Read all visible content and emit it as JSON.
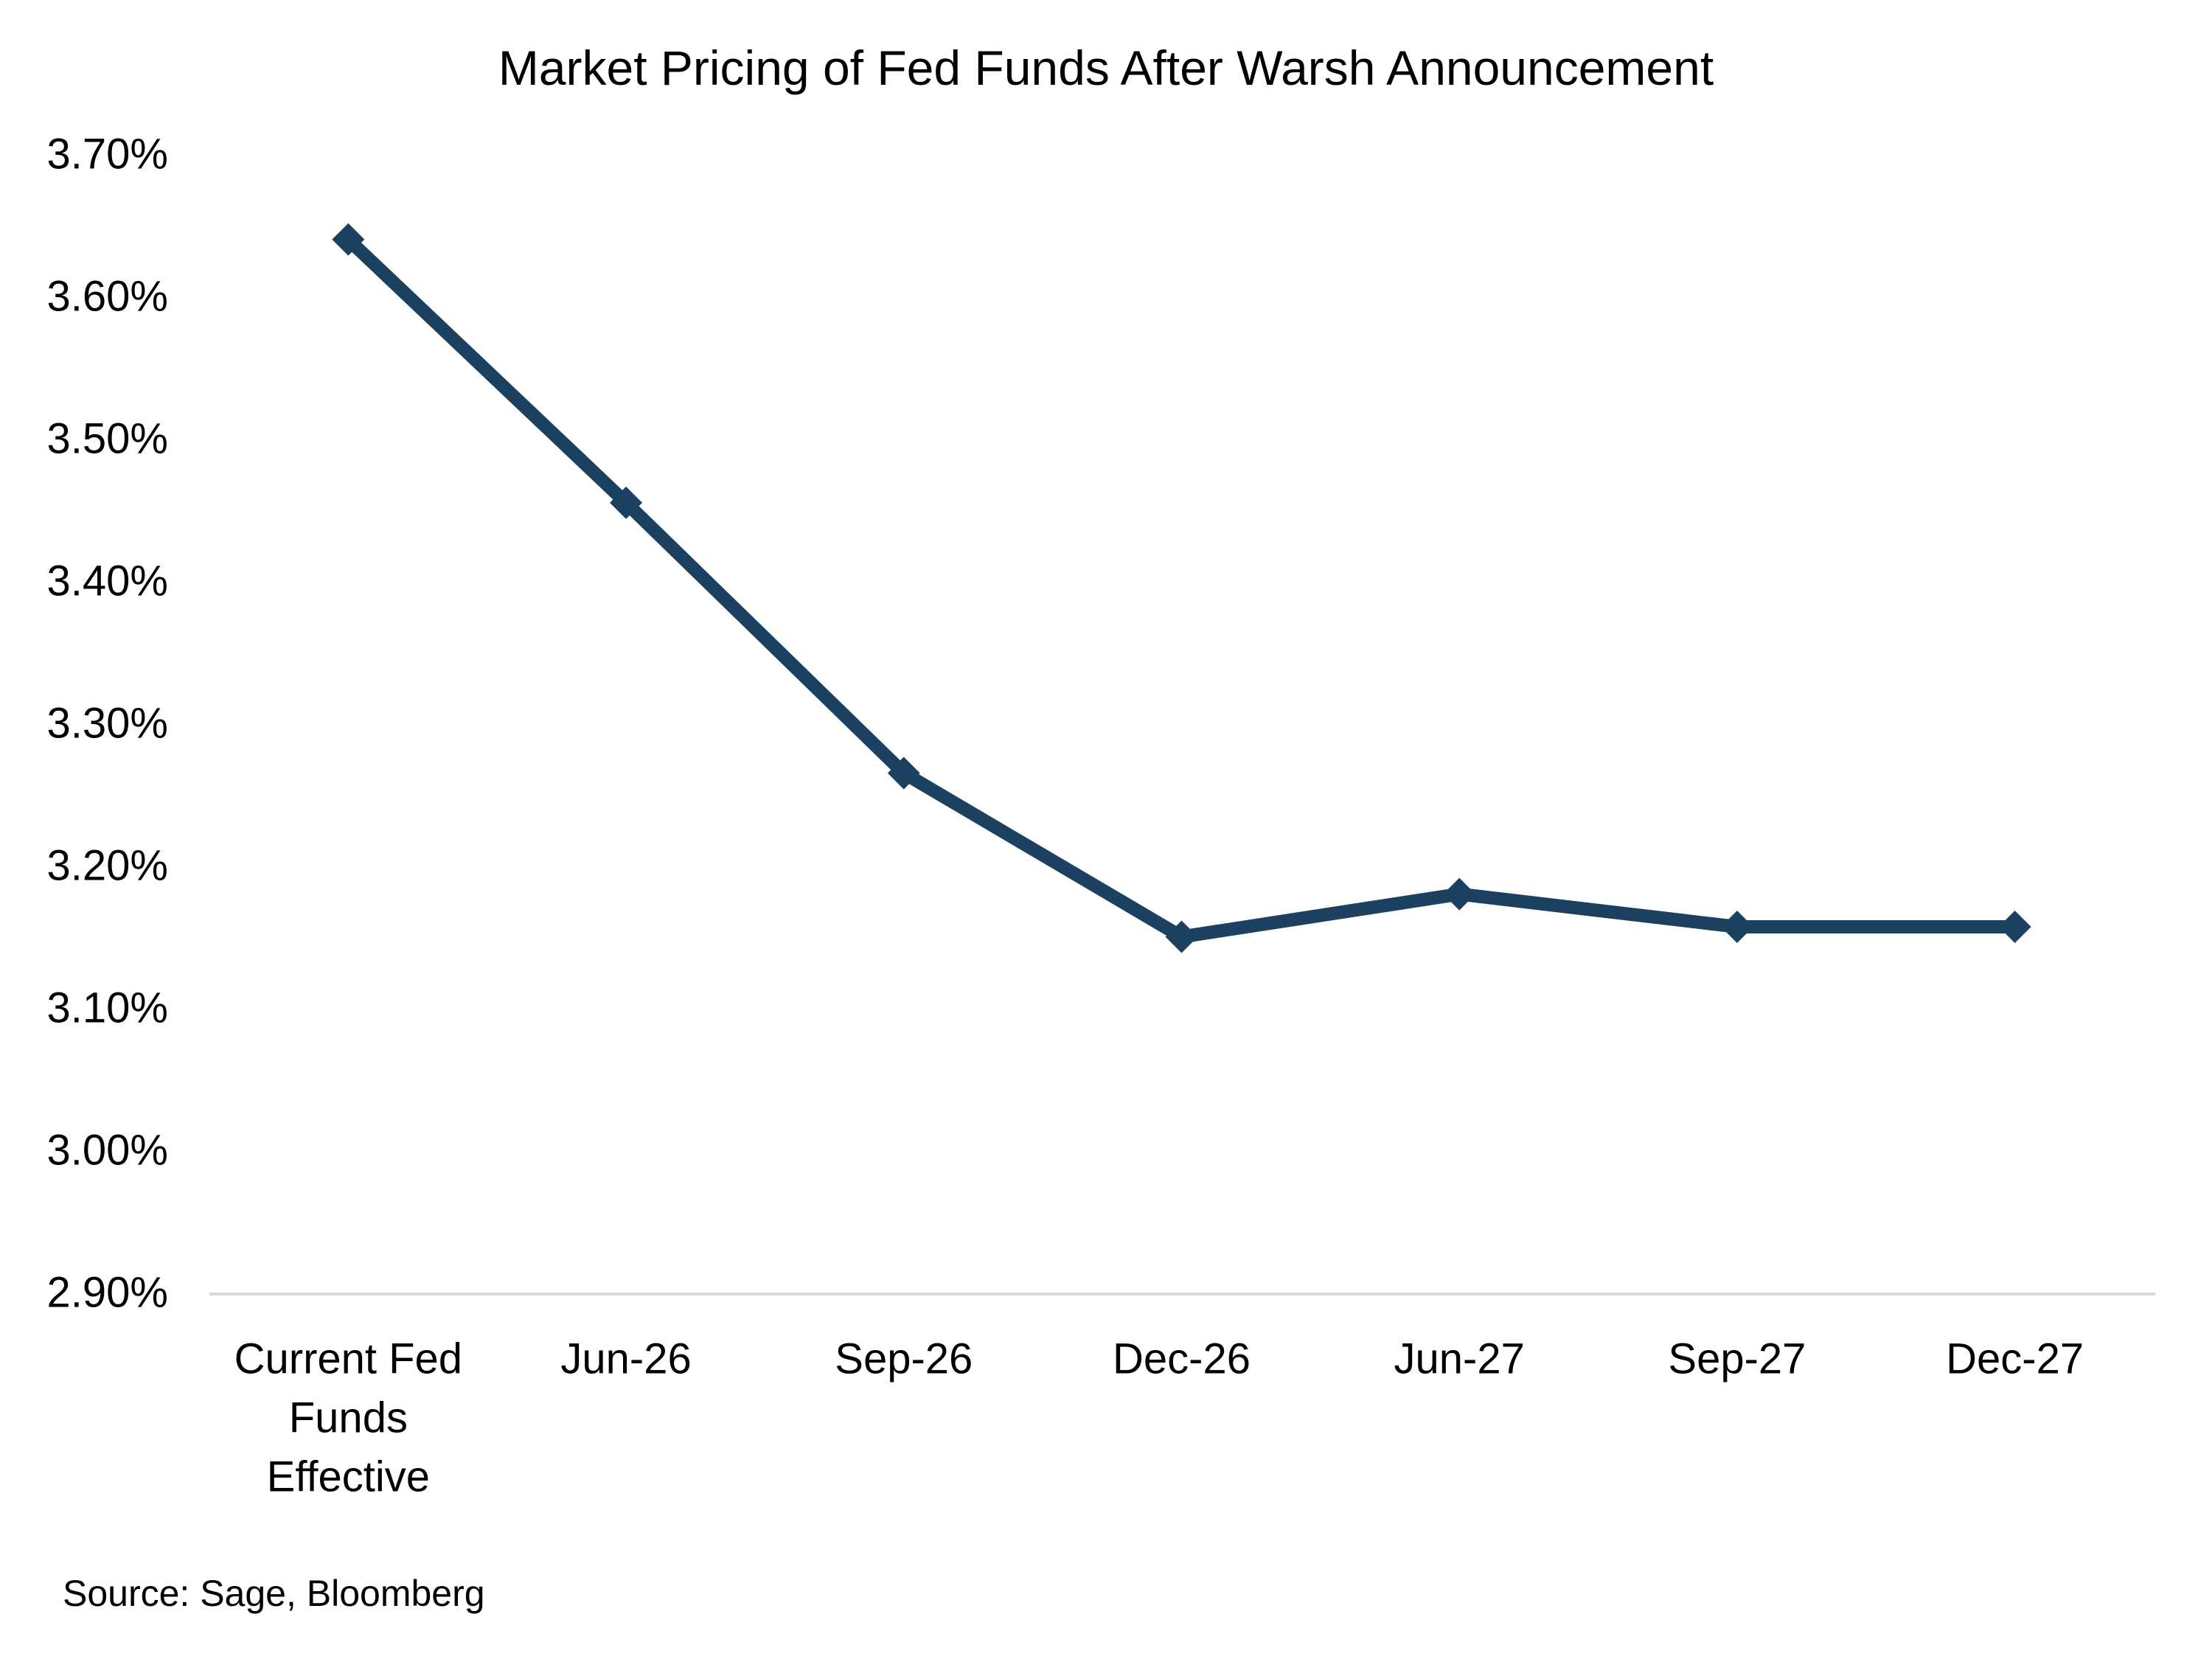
{
  "chart": {
    "title": "Market Pricing of Fed Funds After Warsh Announcement",
    "source_note": "Source: Sage, Bloomberg",
    "colors": {
      "line": "#1B4060",
      "marker": "#1B4060",
      "axis_line": "#D9D9D9",
      "text": "#000000",
      "background": "#FFFFFF"
    }
  },
  "chart_data": {
    "type": "line",
    "title": "Market Pricing of Fed Funds After Warsh Announcement",
    "source": "Source: Sage, Bloomberg",
    "categories": [
      "Current Fed Funds Effective",
      "Jun-26",
      "Sep-26",
      "Dec-26",
      "Jun-27",
      "Sep-27",
      "Dec-27"
    ],
    "category_label_lines": [
      [
        "Current Fed",
        "Funds",
        "Effective"
      ],
      [
        "Jun-26"
      ],
      [
        "Sep-26"
      ],
      [
        "Dec-26"
      ],
      [
        "Jun-27"
      ],
      [
        "Sep-27"
      ],
      [
        "Dec-27"
      ]
    ],
    "series": [
      {
        "name": "Market pricing of fed funds",
        "values": [
          3.64,
          3.455,
          3.265,
          3.15,
          3.18,
          3.157,
          3.157
        ]
      }
    ],
    "unit": "%",
    "xlabel": "",
    "ylabel": "",
    "ylim": [
      2.9,
      3.7
    ],
    "ytick_step": 0.1,
    "ytick_labels": [
      "3.70%",
      "3.60%",
      "3.50%",
      "3.40%",
      "3.30%",
      "3.20%",
      "3.10%",
      "3.00%",
      "2.90%"
    ],
    "grid": false,
    "legend": "none",
    "marker": "diamond"
  }
}
